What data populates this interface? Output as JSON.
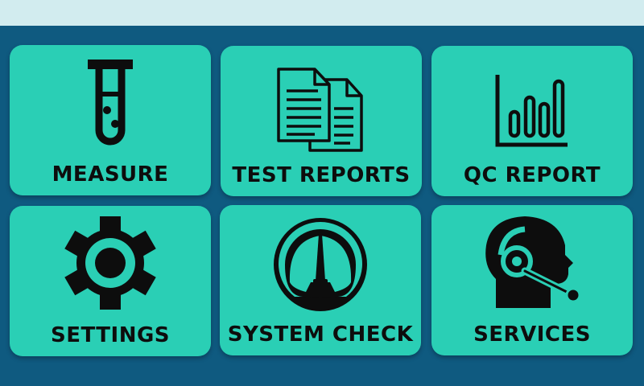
{
  "colors": {
    "topbar": "#d2ecef",
    "background": "#0f5a80",
    "tile": "#2acfb5",
    "icon": "#0d0d0d"
  },
  "tiles": [
    {
      "label": "MEASURE",
      "icon": "test-tube-icon"
    },
    {
      "label": "TEST REPORTS",
      "icon": "documents-icon"
    },
    {
      "label": "QC REPORT",
      "icon": "bar-chart-icon"
    },
    {
      "label": "SETTINGS",
      "icon": "gear-icon"
    },
    {
      "label": "SYSTEM CHECK",
      "icon": "gauge-icon"
    },
    {
      "label": "SERVICES",
      "icon": "support-agent-icon"
    }
  ]
}
